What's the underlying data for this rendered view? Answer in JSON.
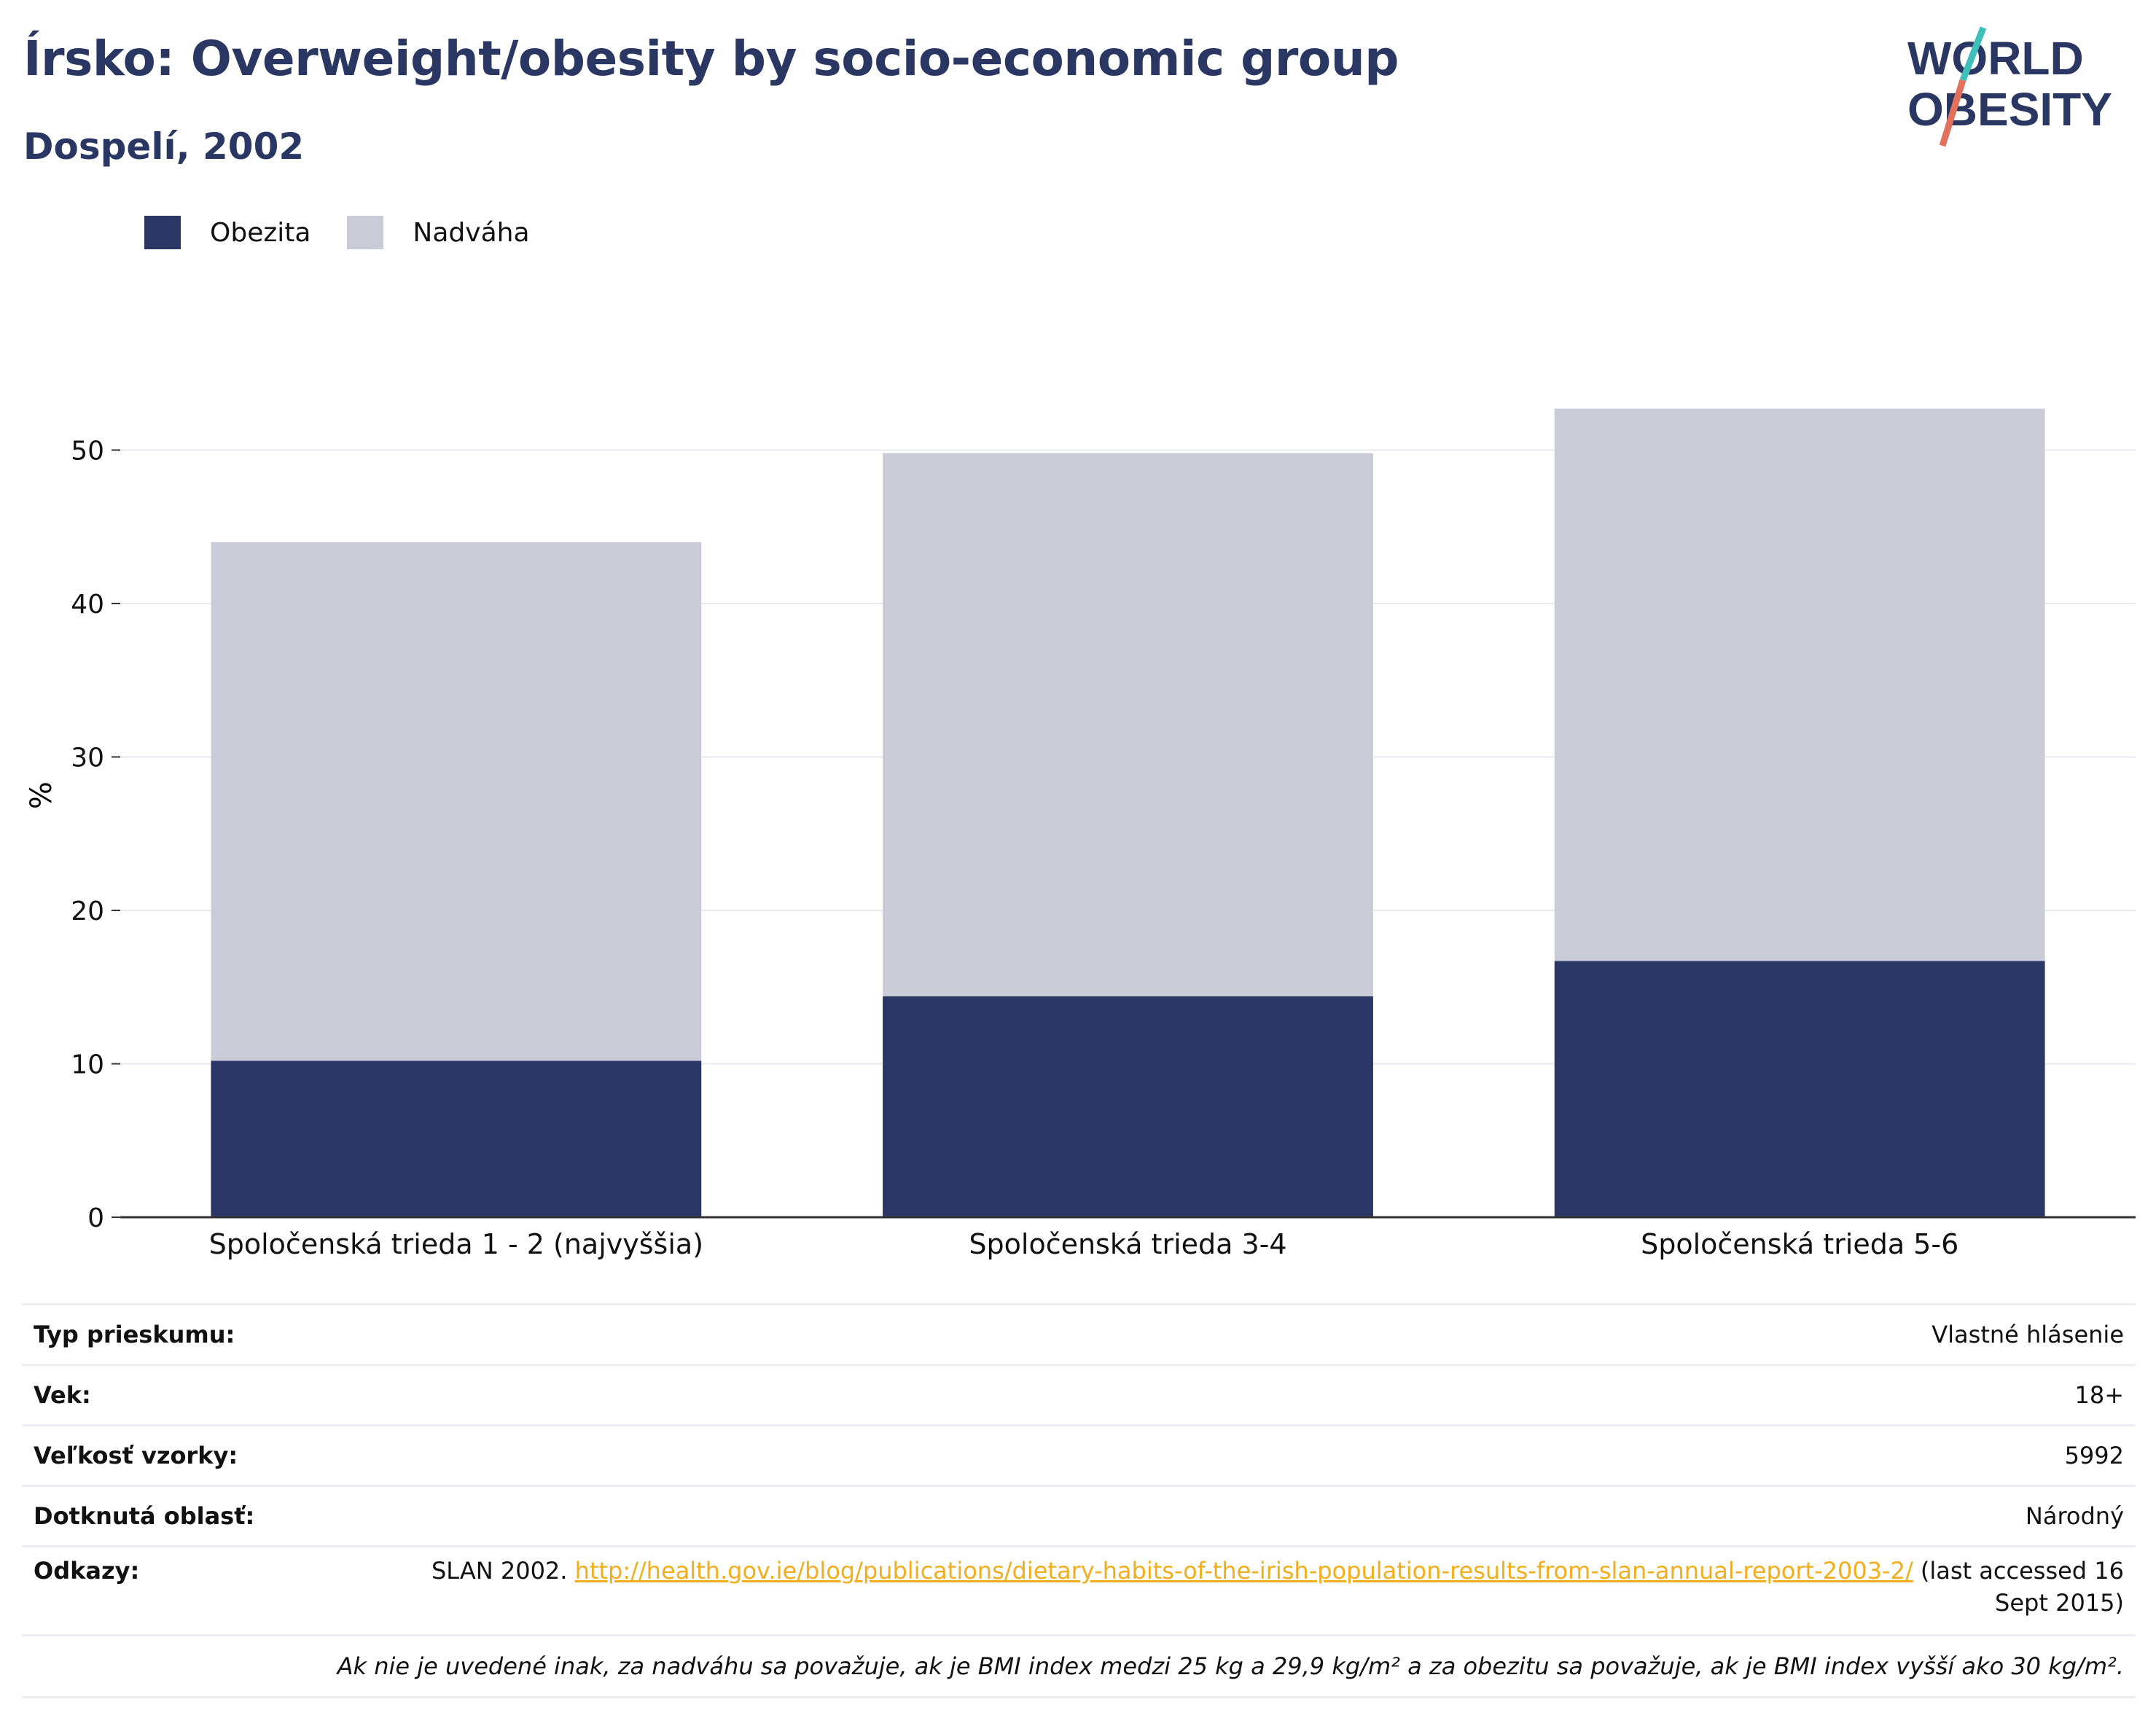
{
  "header": {
    "title": "Írsko: Overweight/obesity by socio-economic group",
    "subtitle": "Dospelí, 2002"
  },
  "logo": {
    "line1": "WORLD",
    "line2": "OBESITY",
    "accent_colors": [
      "#3fbfb9",
      "#e3705d"
    ]
  },
  "chart_data": {
    "type": "bar",
    "stacked": true,
    "categories": [
      "Spoločenská trieda 1 - 2 (najvyššia)",
      "Spoločenská trieda 3-4",
      "Spoločenská trieda 5-6"
    ],
    "series": [
      {
        "name": "Obezita",
        "values": [
          10.2,
          14.4,
          16.7
        ],
        "color": "#2a3664"
      },
      {
        "name": "Nadváha",
        "values": [
          33.8,
          35.4,
          36.0
        ],
        "color": "#c9ccd7"
      }
    ],
    "ylabel": "%",
    "ylim": [
      0,
      55
    ],
    "yticks": [
      0,
      10,
      20,
      30,
      40,
      50
    ],
    "grid": true,
    "legend_position": "top-left"
  },
  "info": {
    "survey_type_label": "Typ prieskumu:",
    "survey_type_value": "Vlastné hlásenie",
    "age_label": "Vek:",
    "age_value": "18+",
    "sample_label": "Veľkosť vzorky:",
    "sample_value": "5992",
    "area_label": "Dotknutá oblasť:",
    "area_value": "Národný",
    "refs_label": "Odkazy:",
    "refs_prefix": "SLAN 2002.",
    "refs_link": "http://health.gov.ie/blog/publications/dietary-habits-of-the-irish-population-results-from-slan-annual-report-2003-2/",
    "refs_suffix": "(last accessed 16 Sept 2015)",
    "note": "Ak nie je uvedené inak, za nadváhu sa považuje, ak je BMI index medzi 25 kg a 29,9 kg/m² a za obezitu sa považuje, ak je BMI index vyšší ako 30 kg/m²."
  }
}
